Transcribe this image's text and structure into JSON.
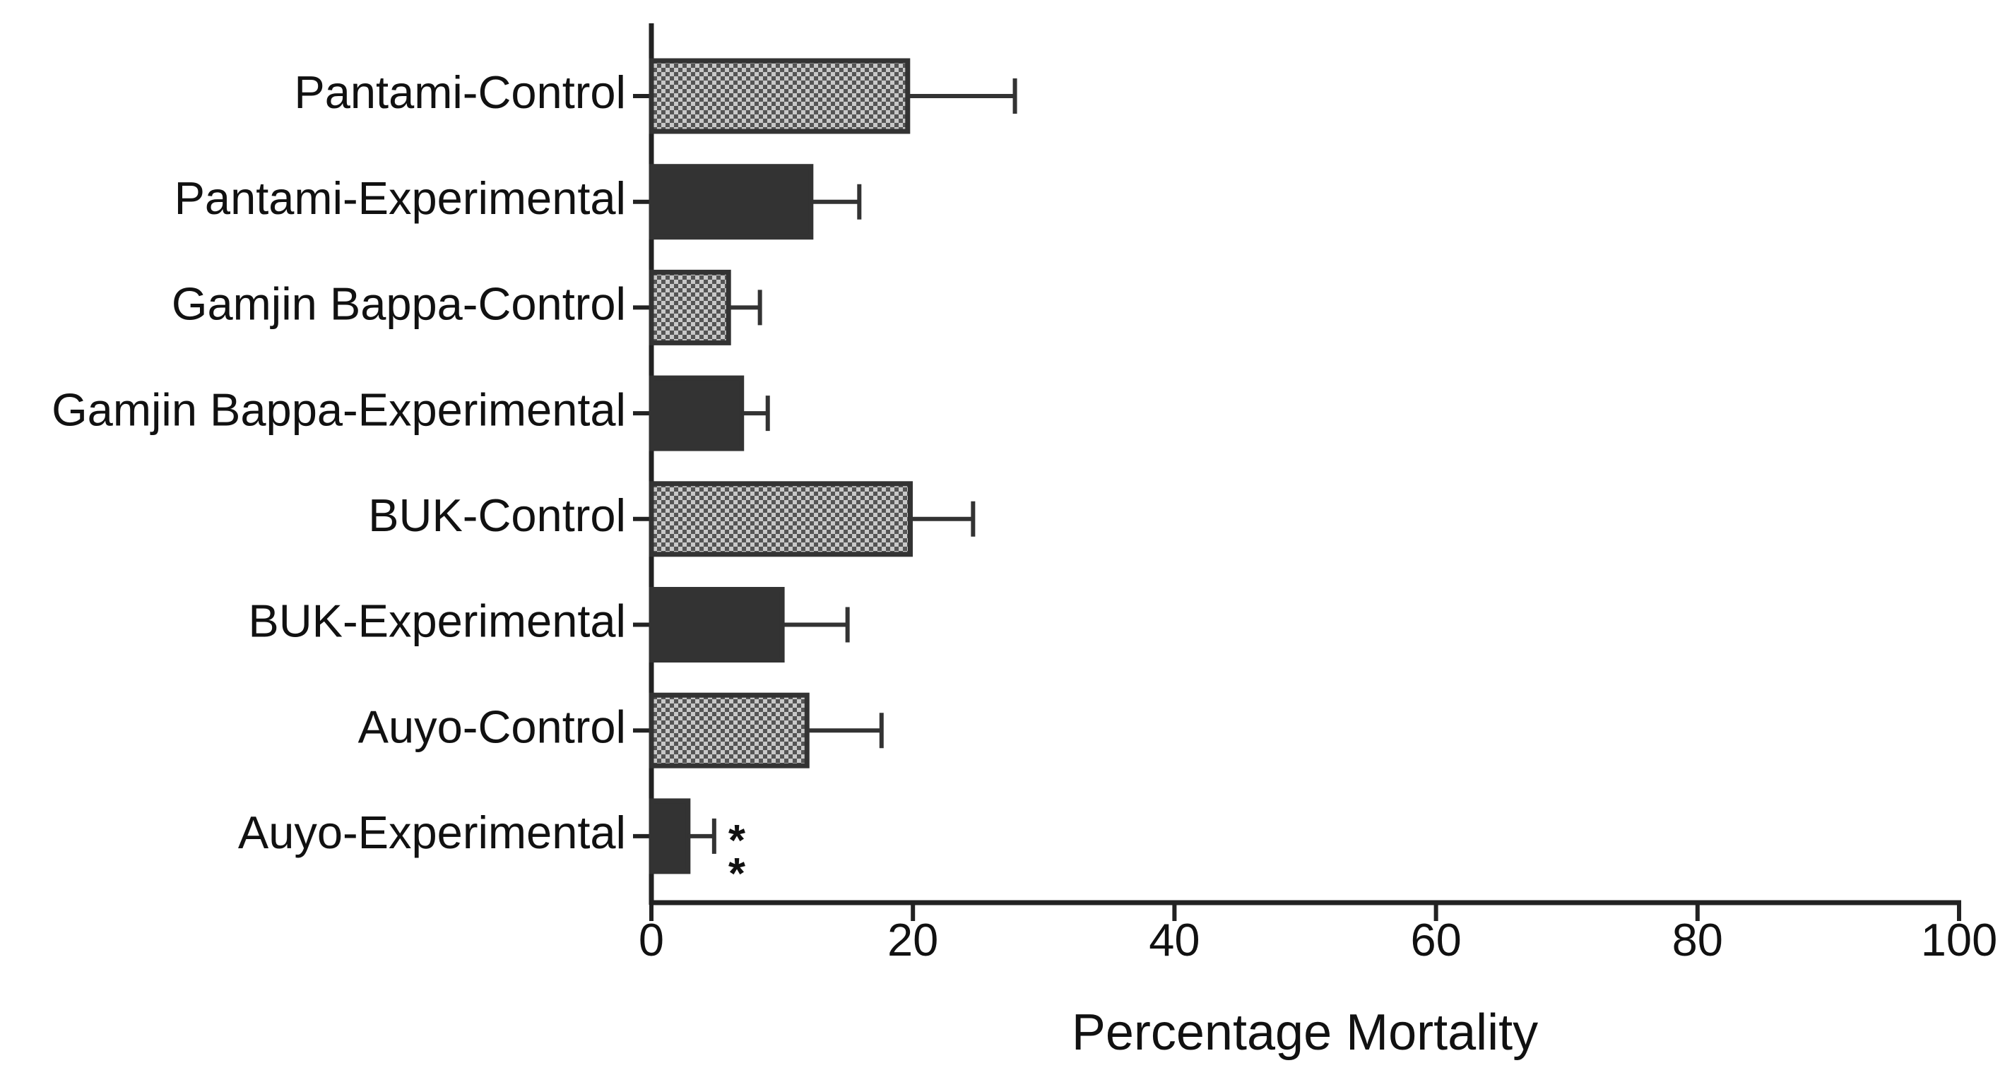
{
  "chart_data": {
    "type": "hbar",
    "x_label": "Percentage Mortality",
    "categories": [
      "Pantami-Control",
      "Pantami-Experimental",
      "Gamjin Bappa-Control",
      "Gamjin Bappa-Experimental",
      "BUK-Control",
      "BUK-Experimental",
      "Auyo-Control",
      "Auyo-Experimental"
    ],
    "values": [
      19.6,
      12.2,
      5.9,
      6.9,
      19.8,
      10.0,
      11.9,
      2.8
    ],
    "errors": [
      8.2,
      3.7,
      2.4,
      2.0,
      4.8,
      5.0,
      5.7,
      2.0
    ],
    "bar_styles": [
      "checkered",
      "solid",
      "checkered",
      "solid",
      "checkered",
      "solid",
      "checkered",
      "solid"
    ],
    "color": "#333333",
    "annotations": [
      {
        "category": 7,
        "text": "**"
      }
    ],
    "xlim": [
      0,
      100
    ],
    "xticks": [
      0,
      20,
      40,
      60,
      80,
      100
    ],
    "grid": false
  }
}
